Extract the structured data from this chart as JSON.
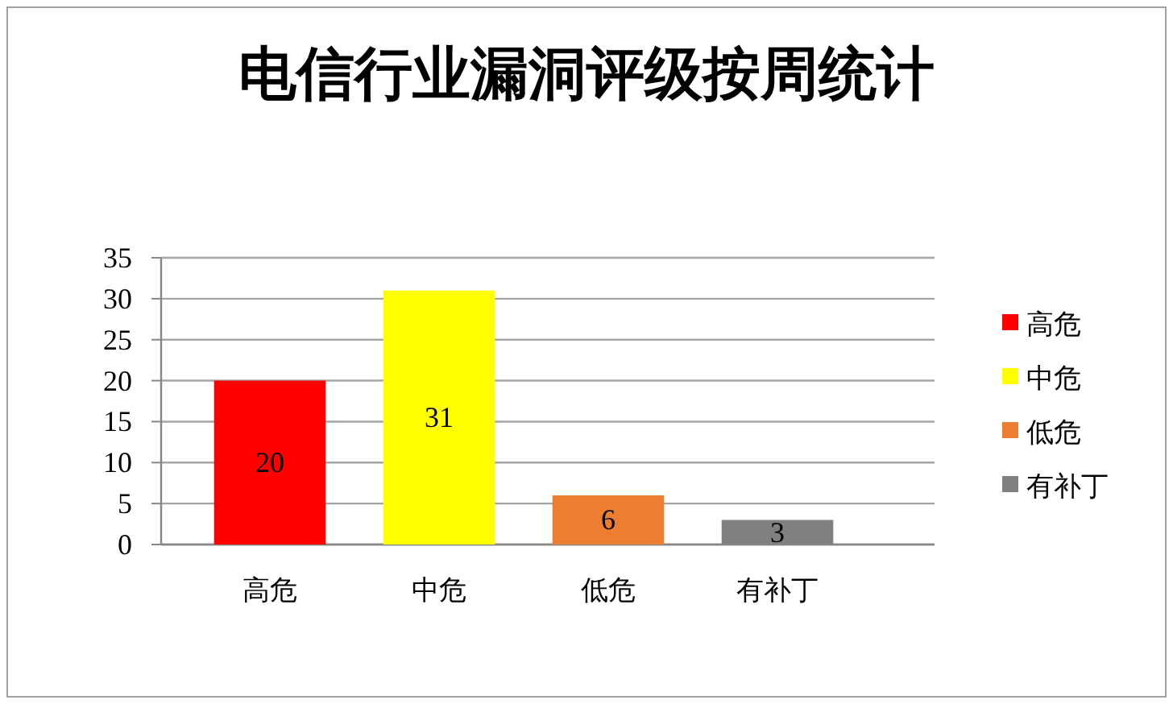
{
  "chart_data": {
    "type": "bar",
    "title": "电信行业漏洞评级按周统计",
    "categories": [
      "高危",
      "中危",
      "低危",
      "有补丁"
    ],
    "series": [
      {
        "name": "高危",
        "color": "#ff0000",
        "values": [
          20,
          null,
          null,
          null
        ]
      },
      {
        "name": "中危",
        "color": "#ffff00",
        "values": [
          null,
          31,
          null,
          null
        ]
      },
      {
        "name": "低危",
        "color": "#ed7d31",
        "values": [
          null,
          null,
          6,
          null
        ]
      },
      {
        "name": "有补丁",
        "color": "#808080",
        "values": [
          null,
          null,
          null,
          3
        ]
      }
    ],
    "stacked": true,
    "ylim": [
      0,
      35
    ],
    "yticks": [
      0,
      5,
      10,
      15,
      20,
      25,
      30,
      35
    ],
    "grid": "y",
    "legend": "right",
    "data_labels": true
  }
}
